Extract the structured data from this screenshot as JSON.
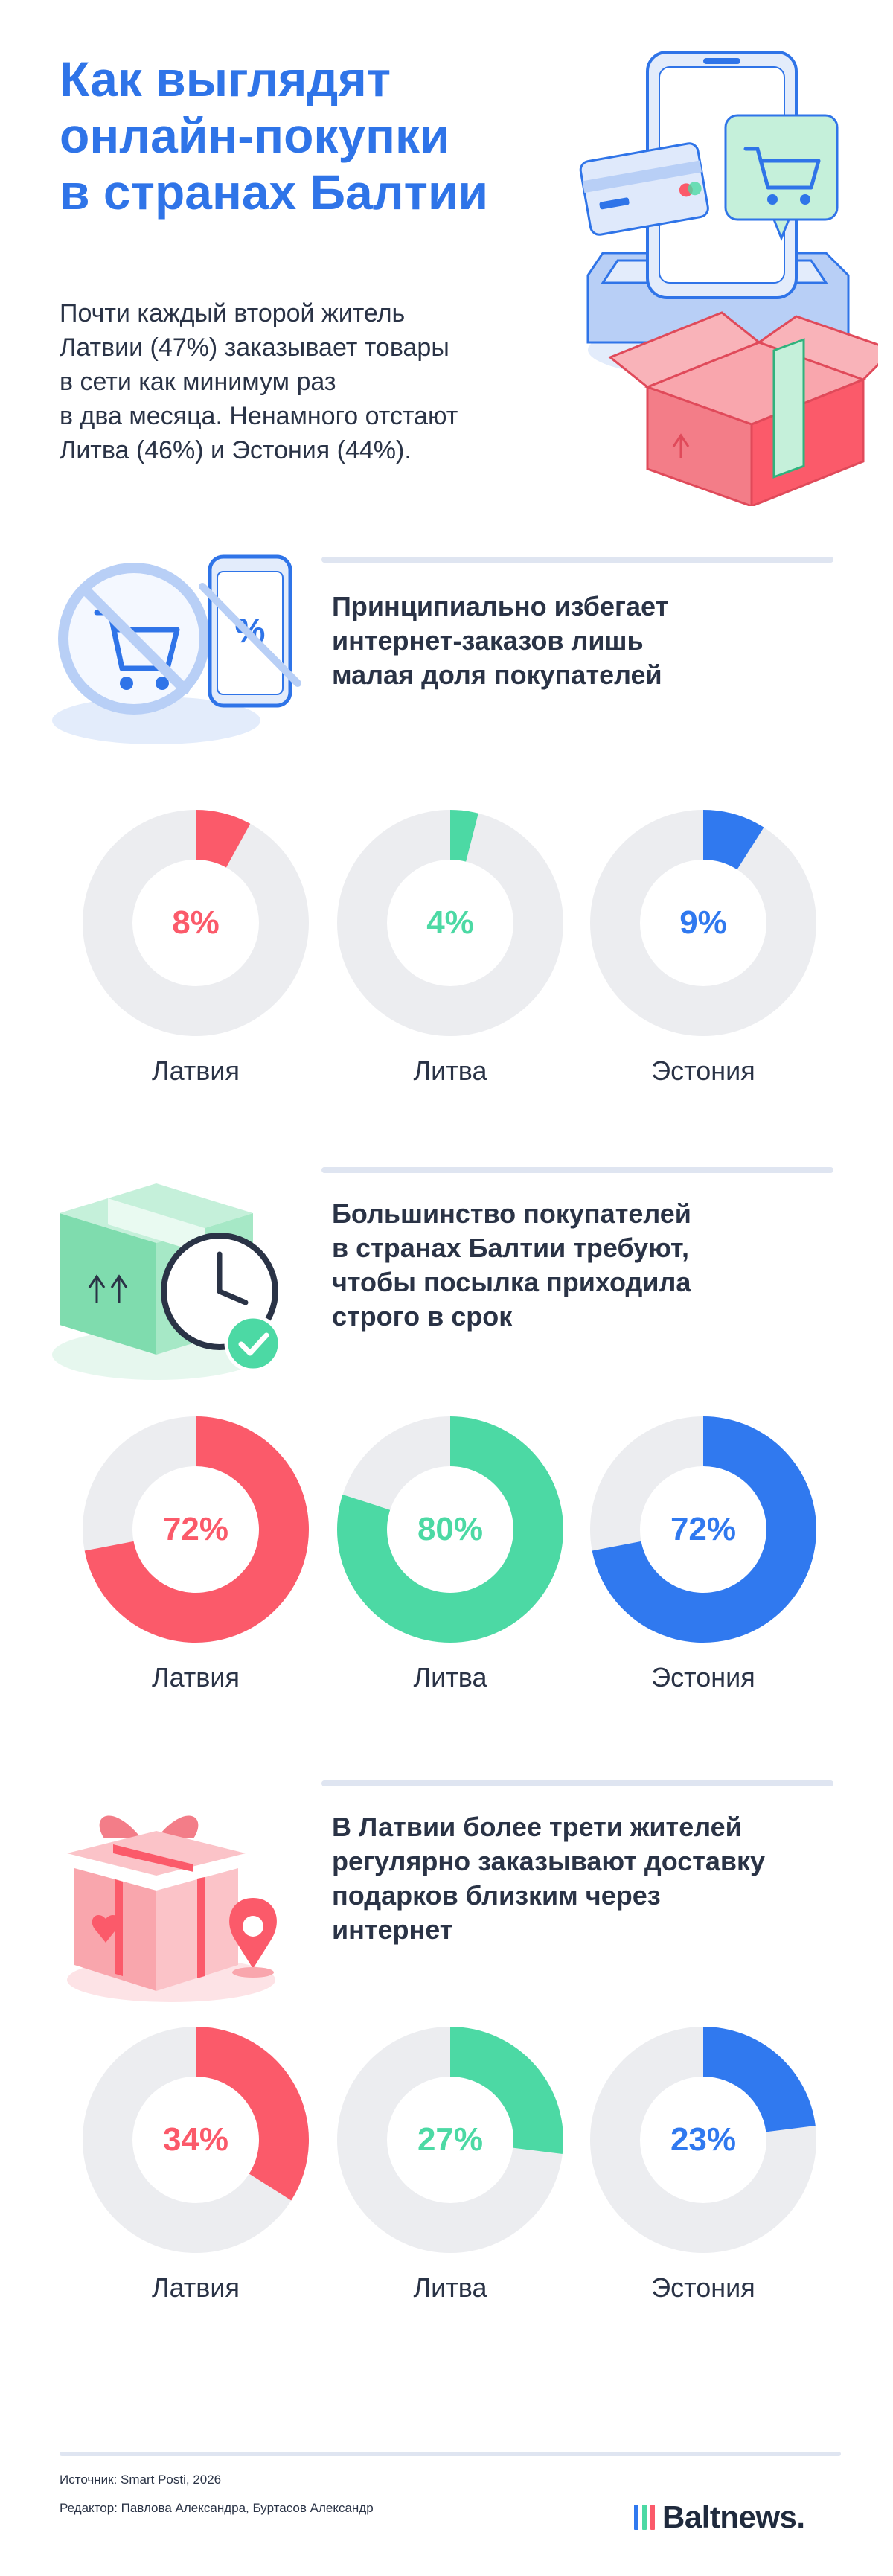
{
  "header": {
    "title_lines": [
      "Как выглядят",
      "онлайн-покупки",
      "в странах Балтии"
    ],
    "lead_lines": [
      "Почти каждый второй житель",
      "Латвии (47%) заказывает товары",
      "в сети как минимум раз",
      "в два месяца. Ненамного отстают",
      "Литва (46%) и Эстония (44%)."
    ]
  },
  "colors": {
    "latvia": "#fb5a6a",
    "lithuania": "#4cd9a4",
    "estonia": "#3079ef",
    "track": "#ecedf0"
  },
  "sections": [
    {
      "icon": "no-shopping-cart-icon",
      "text_lines": [
        "Принципиально избегает",
        "интернет-заказов лишь",
        "малая доля покупателей"
      ]
    },
    {
      "icon": "delivery-box-clock-icon",
      "text_lines": [
        "Большинство покупателей",
        "в странах Балтии требуют,",
        "чтобы посылка приходила",
        "строго в срок"
      ]
    },
    {
      "icon": "gift-location-icon",
      "text_lines": [
        "В Латвии более трети жителей",
        "регулярно заказывают доставку",
        "подарков близким через",
        "интернет"
      ]
    }
  ],
  "chart_data": [
    {
      "type": "pie",
      "categories": [
        "Латвия",
        "Литва",
        "Эстония"
      ],
      "values": [
        8,
        4,
        9
      ],
      "labels": [
        "8%",
        "4%",
        "9%"
      ]
    },
    {
      "type": "pie",
      "categories": [
        "Латвия",
        "Литва",
        "Эстония"
      ],
      "values": [
        72,
        80,
        72
      ],
      "labels": [
        "72%",
        "80%",
        "72%"
      ]
    },
    {
      "type": "pie",
      "categories": [
        "Латвия",
        "Литва",
        "Эстония"
      ],
      "values": [
        34,
        27,
        23
      ],
      "labels": [
        "34%",
        "27%",
        "23%"
      ]
    }
  ],
  "footer": {
    "source": "Источник: Smart Posti, 2026",
    "editor": "Редактор: Павлова Александра, Буртасов Александр",
    "logo": "Baltnews.",
    "logo_bar_colors": [
      "#3079ef",
      "#4cd9a4",
      "#fb5a6a"
    ]
  }
}
